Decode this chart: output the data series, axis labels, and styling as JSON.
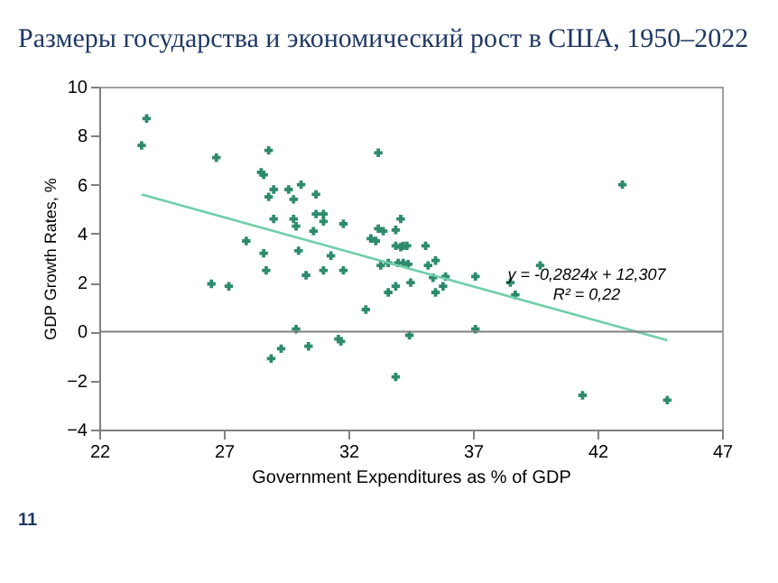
{
  "chart_data": {
    "type": "scatter",
    "title": "Размеры государства и экономический рост в США, 1950–2022",
    "xlabel": "Government Expenditures as % of GDP",
    "ylabel": "GDP Growth Rates, %",
    "xlim": [
      22,
      47
    ],
    "xticks": [
      22,
      27,
      32,
      37,
      42,
      47
    ],
    "ylim": [
      -4,
      10
    ],
    "yticks": [
      -4,
      -2,
      0,
      2,
      4,
      6,
      8,
      10
    ],
    "grid": false,
    "ref_lines": [
      {
        "axis": "y",
        "value": 0,
        "color": "#808080"
      }
    ],
    "series": [
      {
        "marker": "cross",
        "color": "#2e8b6a",
        "x": [
          23.7,
          23.9,
          26.5,
          26.7,
          27.2,
          27.9,
          28.5,
          28.6,
          28.8,
          28.6,
          28.7,
          28.8,
          28.9,
          29.0,
          29.0,
          29.3,
          29.6,
          29.8,
          29.8,
          29.9,
          29.9,
          30.0,
          30.1,
          30.3,
          30.4,
          30.6,
          30.7,
          30.7,
          31.0,
          31.0,
          31.0,
          31.3,
          31.6,
          31.7,
          31.8,
          31.8,
          32.7,
          32.9,
          33.1,
          33.2,
          33.2,
          33.4,
          33.3,
          33.6,
          33.6,
          33.9,
          33.9,
          33.9,
          33.9,
          34.0,
          34.1,
          34.1,
          34.2,
          34.2,
          34.35,
          34.4,
          34.5,
          34.45,
          35.1,
          35.2,
          35.4,
          35.5,
          35.5,
          35.8,
          35.9,
          37.1,
          37.1,
          38.5,
          38.7,
          39.7,
          41.4,
          43.0,
          44.8
        ],
        "values": [
          7.6,
          8.7,
          1.95,
          7.1,
          1.85,
          3.7,
          6.5,
          6.4,
          7.4,
          3.2,
          2.5,
          5.5,
          -1.1,
          5.8,
          4.6,
          -0.7,
          5.8,
          5.4,
          4.6,
          4.3,
          0.1,
          3.3,
          6.0,
          2.3,
          -0.6,
          4.1,
          5.6,
          4.8,
          2.5,
          4.8,
          4.5,
          3.1,
          -0.3,
          -0.4,
          4.4,
          2.5,
          0.9,
          3.8,
          3.7,
          7.3,
          4.2,
          4.1,
          2.7,
          2.8,
          1.6,
          1.85,
          -1.85,
          3.5,
          4.15,
          2.8,
          4.6,
          3.45,
          2.8,
          3.5,
          3.5,
          2.75,
          2.0,
          -0.15,
          3.5,
          2.7,
          2.2,
          2.9,
          1.6,
          1.85,
          2.25,
          2.25,
          0.1,
          2.0,
          1.5,
          2.7,
          -2.6,
          6.0,
          -2.8
        ]
      },
      {
        "type": "line",
        "marker": "none",
        "color": "#6fcfa8",
        "x": [
          23.7,
          44.8
        ],
        "values": [
          5.6,
          -0.35
        ]
      }
    ],
    "annotations": [
      "y = -0,2824x + 12,307",
      "R² = 0,22",
      "11"
    ]
  }
}
